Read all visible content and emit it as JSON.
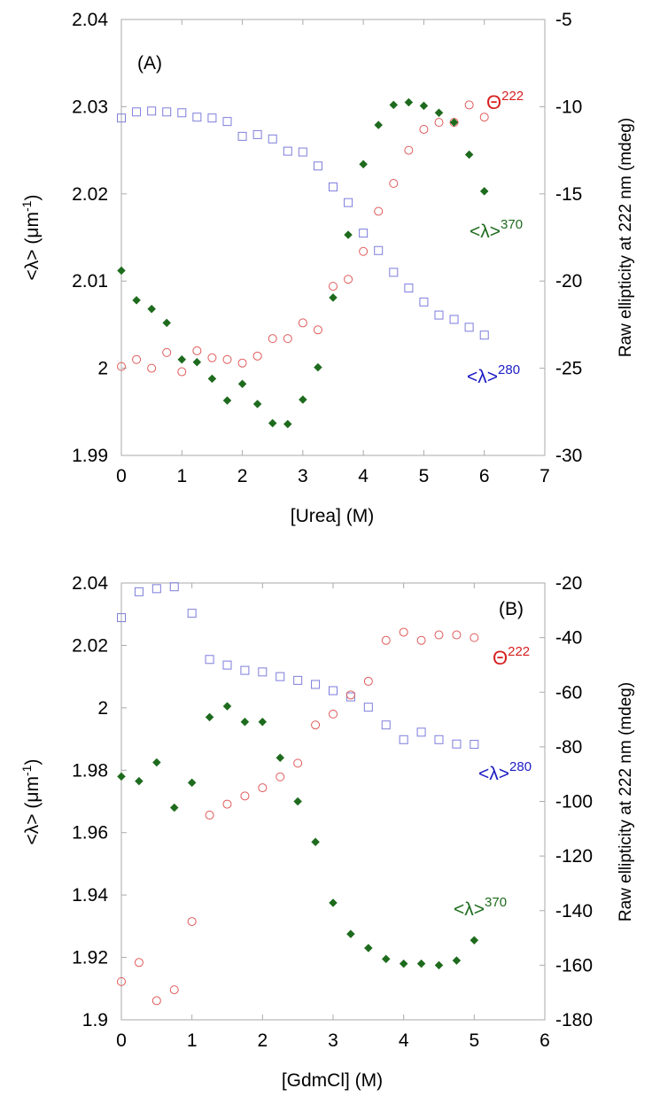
{
  "chart_data": [
    {
      "type": "scatter",
      "panel_label": "(A)",
      "xlabel": "[Urea] (M)",
      "ylabel_left": {
        "main": "<λ> (μm",
        "sup": "-1",
        "tail": ")"
      },
      "ylabel_right": "Raw ellipticity at 222 nm (mdeg)",
      "xlim": [
        0,
        7
      ],
      "ylim_left": [
        1.99,
        2.04
      ],
      "ylim_right": [
        -30,
        -5
      ],
      "xticks": [
        0,
        1,
        2,
        3,
        4,
        5,
        6,
        7
      ],
      "yticks_left": [
        1.99,
        2,
        2.01,
        2.02,
        2.03,
        2.04
      ],
      "yticks_left_labels": [
        "1.99",
        "2",
        "2.01",
        "2.02",
        "2.03",
        "2.04"
      ],
      "yticks_right": [
        -30,
        -25,
        -20,
        -15,
        -10,
        -5
      ],
      "yticks_right_labels": [
        "-30",
        "-25",
        "-20",
        "-15",
        "-10",
        "-5"
      ],
      "grid": false,
      "series": [
        {
          "key": "l280",
          "marker": "square",
          "color": "#7d7ddc",
          "axis": "left",
          "label": {
            "main": "<λ>",
            "sup": "280"
          },
          "x": [
            0,
            0.25,
            0.5,
            0.75,
            1.0,
            1.25,
            1.5,
            1.75,
            2.0,
            2.25,
            2.5,
            2.75,
            3.0,
            3.25,
            3.5,
            3.75,
            4.0,
            4.25,
            4.5,
            4.75,
            5.0,
            5.25,
            5.5,
            5.75,
            6.0
          ],
          "y": [
            2.0287,
            2.0294,
            2.0295,
            2.0294,
            2.0293,
            2.0288,
            2.0287,
            2.0283,
            2.0266,
            2.0268,
            2.0263,
            2.0249,
            2.0248,
            2.0232,
            2.0208,
            2.019,
            2.0155,
            2.0135,
            2.011,
            2.0092,
            2.0076,
            2.0061,
            2.0056,
            2.0047,
            2.0038
          ]
        },
        {
          "key": "theta",
          "marker": "circle",
          "color": "#e05a5a",
          "axis": "right",
          "label": {
            "main": "Θ",
            "sup": "222"
          },
          "x": [
            0,
            0.25,
            0.5,
            0.75,
            1.0,
            1.25,
            1.5,
            1.75,
            2.0,
            2.25,
            2.5,
            2.75,
            3.0,
            3.25,
            3.5,
            3.75,
            4.0,
            4.25,
            4.5,
            4.75,
            5.0,
            5.25,
            5.5,
            5.75,
            6.0
          ],
          "y": [
            -24.9,
            -24.5,
            -25.0,
            -24.1,
            -25.2,
            -24.0,
            -24.4,
            -24.5,
            -24.7,
            -24.3,
            -23.3,
            -23.3,
            -22.4,
            -22.8,
            -20.3,
            -19.9,
            -18.3,
            -16.0,
            -14.4,
            -12.5,
            -11.3,
            -10.9,
            -10.9,
            -9.9,
            -10.6
          ]
        },
        {
          "key": "l370",
          "marker": "diamond",
          "color": "#1e6b1e",
          "axis": "left",
          "label": {
            "main": "<λ>",
            "sup": "370"
          },
          "x": [
            0,
            0.25,
            0.5,
            0.75,
            1.0,
            1.25,
            1.5,
            1.75,
            2.0,
            2.25,
            2.5,
            2.75,
            3.0,
            3.25,
            3.5,
            3.75,
            4.0,
            4.25,
            4.5,
            4.75,
            5.0,
            5.25,
            5.5,
            5.75,
            6.0
          ],
          "y": [
            2.0112,
            2.0078,
            2.0068,
            2.0052,
            2.001,
            2.0007,
            1.9988,
            1.9963,
            1.9982,
            1.9959,
            1.9937,
            1.9936,
            1.9964,
            2.0001,
            2.0081,
            2.0153,
            2.0234,
            2.0279,
            2.0302,
            2.0305,
            2.0301,
            2.0293,
            2.0282,
            2.0245,
            2.0203
          ]
        }
      ]
    },
    {
      "type": "scatter",
      "panel_label": "(B)",
      "xlabel": "[GdmCl] (M)",
      "ylabel_left": {
        "main": "<λ> (μm",
        "sup": "-1",
        "tail": ")"
      },
      "ylabel_right": "Raw ellipticity at 222 nm (mdeg)",
      "xlim": [
        0,
        6
      ],
      "ylim_left": [
        1.9,
        2.04
      ],
      "ylim_right": [
        -180,
        -20
      ],
      "xticks": [
        0,
        1,
        2,
        3,
        4,
        5,
        6
      ],
      "yticks_left": [
        1.9,
        1.92,
        1.94,
        1.96,
        1.98,
        2,
        2.02,
        2.04
      ],
      "yticks_left_labels": [
        "1.9",
        "1.92",
        "1.94",
        "1.96",
        "1.98",
        "2",
        "2.02",
        "2.04"
      ],
      "yticks_right": [
        -180,
        -160,
        -140,
        -120,
        -100,
        -80,
        -60,
        -40,
        -20
      ],
      "yticks_right_labels": [
        "-180",
        "-160",
        "-140",
        "-120",
        "-100",
        "-80",
        "-60",
        "-40",
        "-20"
      ],
      "grid": false,
      "series": [
        {
          "key": "l280",
          "marker": "square",
          "color": "#7d7ddc",
          "axis": "left",
          "label": {
            "main": "<λ>",
            "sup": "280"
          },
          "x": [
            0,
            0.25,
            0.5,
            0.75,
            1.0,
            1.25,
            1.5,
            1.75,
            2.0,
            2.25,
            2.5,
            2.75,
            3.0,
            3.25,
            3.5,
            3.75,
            4.0,
            4.25,
            4.5,
            4.75,
            5.0
          ],
          "y": [
            2.0289,
            2.0372,
            2.0382,
            2.0388,
            2.0303,
            2.0155,
            2.0137,
            2.012,
            2.0115,
            2.01,
            2.0088,
            2.0075,
            2.0055,
            2.0035,
            2.0002,
            1.9945,
            1.9898,
            1.9922,
            1.9898,
            1.9884,
            1.9883
          ]
        },
        {
          "key": "theta",
          "marker": "circle",
          "color": "#e05a5a",
          "axis": "right",
          "label": {
            "main": "Θ",
            "sup": "222"
          },
          "x": [
            0,
            0.25,
            0.5,
            0.75,
            1.0,
            1.25,
            1.5,
            1.75,
            2.0,
            2.25,
            2.5,
            2.75,
            3.0,
            3.25,
            3.5,
            3.75,
            4.0,
            4.25,
            4.5,
            4.75,
            5.0
          ],
          "y": [
            -166,
            -159,
            -173,
            -169,
            -144,
            -105,
            -101,
            -98,
            -95,
            -91,
            -86,
            -72,
            -68,
            -61,
            -56,
            -41,
            -38,
            -41,
            -39,
            -39,
            -40
          ]
        },
        {
          "key": "l370",
          "marker": "diamond",
          "color": "#1e6b1e",
          "axis": "left",
          "label": {
            "main": "<λ>",
            "sup": "370"
          },
          "x": [
            0,
            0.25,
            0.5,
            0.75,
            1.0,
            1.25,
            1.5,
            1.75,
            2.0,
            2.25,
            2.5,
            2.75,
            3.0,
            3.25,
            3.5,
            3.75,
            4.0,
            4.25,
            4.5,
            4.75,
            5.0
          ],
          "y": [
            1.978,
            1.9765,
            1.9825,
            1.968,
            1.976,
            1.997,
            2.0005,
            1.9955,
            1.9955,
            1.984,
            1.97,
            1.957,
            1.9375,
            1.9275,
            1.923,
            1.9195,
            1.918,
            1.918,
            1.9175,
            1.919,
            1.9255
          ]
        }
      ]
    }
  ]
}
